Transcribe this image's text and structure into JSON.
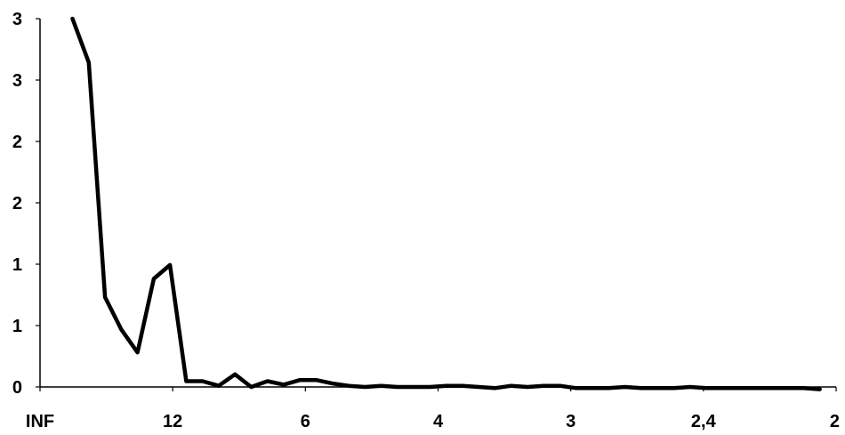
{
  "chart_data": {
    "type": "line",
    "title": "",
    "xlabel": "",
    "ylabel": "",
    "x_tick_labels": [
      "INF",
      "12",
      "6",
      "4",
      "3",
      "2,4",
      "2"
    ],
    "y_tick_labels": [
      "0",
      "1",
      "1",
      "2",
      "2",
      "3",
      "3"
    ],
    "ylim": [
      0,
      3.2
    ],
    "grid": false,
    "legend": "none",
    "line_color": "#000000",
    "series": [
      {
        "x": [
          2,
          3,
          4,
          5,
          6,
          7,
          8,
          9,
          10,
          11,
          12,
          13,
          14,
          15,
          16,
          17,
          18,
          19,
          20,
          21,
          22,
          23,
          24,
          25,
          26,
          27,
          28,
          29,
          30,
          31,
          32,
          33,
          34,
          35,
          36,
          37,
          38,
          39,
          40,
          41,
          42,
          43,
          44,
          45,
          46,
          47,
          48
        ],
        "values": [
          3.2,
          2.82,
          0.78,
          0.5,
          0.3,
          0.94,
          1.06,
          0.05,
          0.05,
          0.01,
          0.11,
          0.0,
          0.05,
          0.02,
          0.06,
          0.06,
          0.03,
          0.01,
          0.0,
          0.01,
          0.0,
          0.0,
          0.0,
          0.01,
          0.01,
          0.0,
          -0.01,
          0.01,
          0.0,
          0.01,
          0.01,
          -0.01,
          -0.01,
          -0.01,
          0.0,
          -0.01,
          -0.01,
          -0.01,
          0.0,
          -0.01,
          -0.01,
          -0.01,
          -0.01,
          -0.01,
          -0.01,
          -0.01,
          -0.02
        ]
      }
    ]
  }
}
